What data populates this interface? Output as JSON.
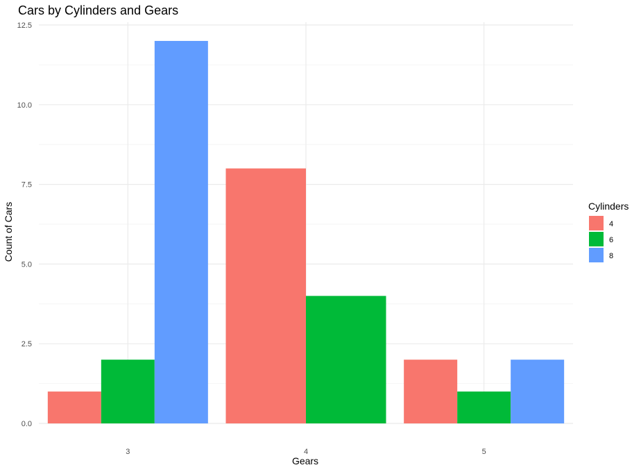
{
  "chart_data": {
    "type": "bar",
    "title": "Cars by Cylinders and Gears",
    "xlabel": "Gears",
    "ylabel": "Count of Cars",
    "categories": [
      "3",
      "4",
      "5"
    ],
    "series": [
      {
        "name": "4",
        "color": "#F8766D",
        "values": [
          1,
          8,
          2
        ]
      },
      {
        "name": "6",
        "color": "#00BA38",
        "values": [
          2,
          4,
          1
        ]
      },
      {
        "name": "8",
        "color": "#619CFF",
        "values": [
          12,
          null,
          2
        ]
      }
    ],
    "ylim": [
      0,
      12.5
    ],
    "y_ticks": [
      "0.0",
      "2.5",
      "5.0",
      "7.5",
      "10.0",
      "12.5"
    ],
    "grid": true,
    "legend": {
      "title": "Cylinders",
      "position": "right"
    }
  }
}
